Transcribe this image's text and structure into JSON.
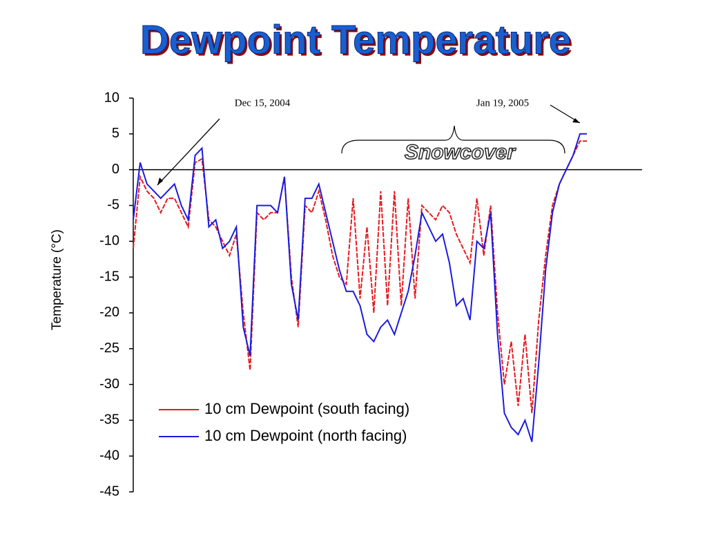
{
  "chart_data": {
    "type": "line",
    "title": "Dewpoint Temperature",
    "y_label": "Temperature (°C)",
    "annotations": [
      "Dec 15, 2004",
      "Jan 19, 2005",
      "Snowcover"
    ],
    "ylim": [
      -45,
      10
    ],
    "yticks": [
      10,
      5,
      0,
      -5,
      -10,
      -15,
      -20,
      -25,
      -30,
      -35,
      -40,
      -45
    ],
    "series": [
      {
        "name": "10 cm Dewpoint (south facing)",
        "color": "#e8191e",
        "values": [
          -11,
          -1,
          -3,
          -4,
          -6,
          -4,
          -4,
          -6,
          -8,
          1,
          1.5,
          -7,
          -8,
          -10,
          -12,
          -9,
          -20,
          -28,
          -6,
          -7,
          -6,
          -6,
          -1,
          -15,
          -22,
          -5,
          -6,
          -3,
          -7,
          -12,
          -15,
          -16,
          -4,
          -18,
          -8,
          -20,
          -3,
          -19,
          -3,
          -19,
          -4,
          -18,
          -5,
          -6,
          -7,
          -5,
          -6,
          -9,
          -11,
          -13,
          -4,
          -12,
          -5,
          -20,
          -30,
          -24,
          -33,
          -23,
          -34,
          -21,
          -12,
          -5,
          -2,
          0,
          2,
          4,
          4
        ]
      },
      {
        "name": "10 cm Dewpoint (north facing)",
        "color": "#1a1ae0",
        "values": [
          -7,
          1,
          -2,
          -3,
          -4,
          -3,
          -2,
          -5,
          -7,
          2,
          3,
          -8,
          -7,
          -11,
          -10,
          -8,
          -22,
          -26,
          -5,
          -5,
          -5,
          -6,
          -1,
          -16,
          -21,
          -4,
          -4,
          -2,
          -6,
          -10,
          -14,
          -17,
          -17,
          -19,
          -23,
          -24,
          -22,
          -21,
          -23,
          -20,
          -17,
          -12,
          -6,
          -8,
          -10,
          -9,
          -13,
          -19,
          -18,
          -21,
          -10,
          -11,
          -6,
          -23,
          -34,
          -36,
          -37,
          -35,
          -38,
          -27,
          -14,
          -6,
          -2,
          0,
          2,
          5,
          5
        ]
      }
    ]
  }
}
